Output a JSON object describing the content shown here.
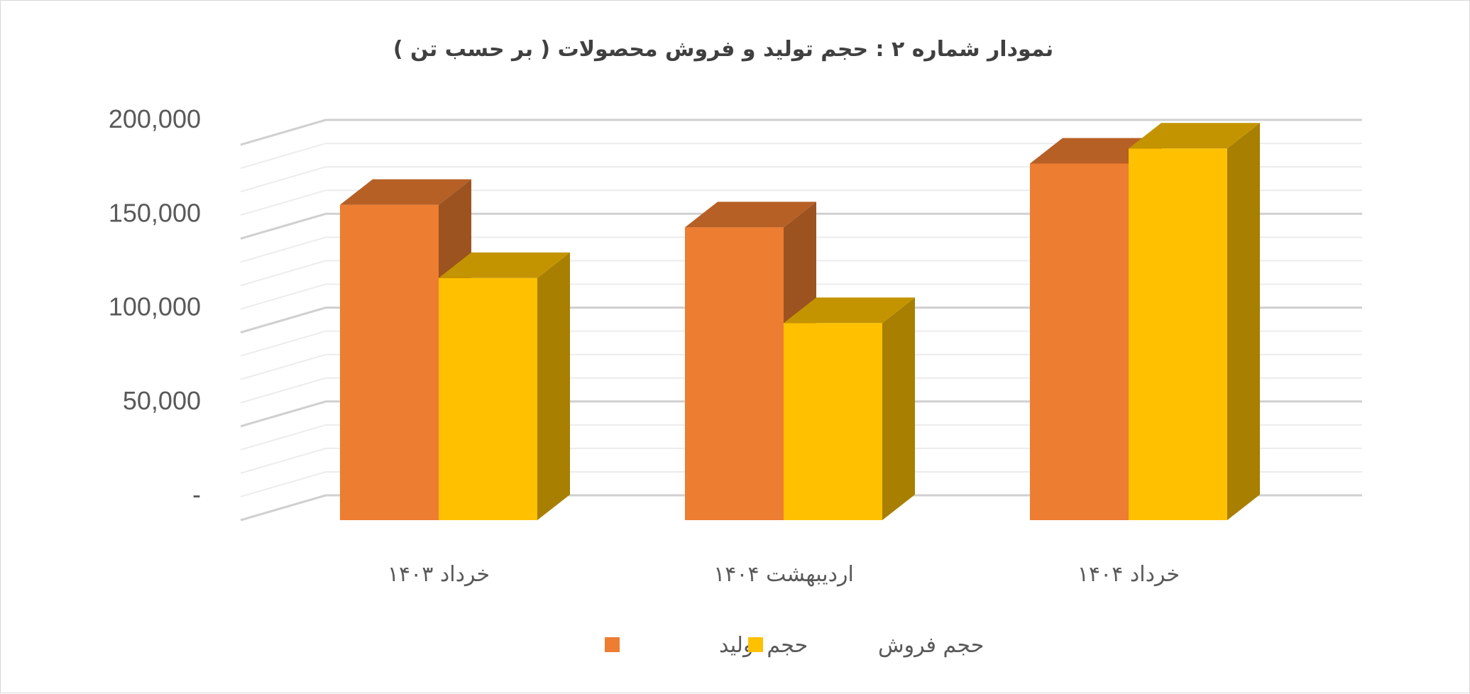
{
  "chart_data": {
    "type": "bar",
    "title": "نمودار شماره ۲ : حجم  تولید و فروش محصولات ( بر حسب تن )",
    "categories": [
      "خرداد ۱۴۰۳",
      "اردیبهشت ۱۴۰۴",
      "خرداد ۱۴۰۴"
    ],
    "series": [
      {
        "name": "حجم تولید",
        "values": [
          168000,
          156000,
          190000
        ],
        "color": "#ED7D31"
      },
      {
        "name": "حجم فروش",
        "values": [
          129000,
          105000,
          198000
        ],
        "color": "#FFC000"
      }
    ],
    "ylim": [
      0,
      200000
    ],
    "yticks": [
      {
        "value": 0,
        "label": "-"
      },
      {
        "value": 50000,
        "label": "50,000"
      },
      {
        "value": 100000,
        "label": "100,000"
      },
      {
        "value": 150000,
        "label": "150,000"
      },
      {
        "value": 200000,
        "label": "200,000"
      }
    ],
    "grid": true,
    "legend": "bottom",
    "style": "3d-column"
  }
}
